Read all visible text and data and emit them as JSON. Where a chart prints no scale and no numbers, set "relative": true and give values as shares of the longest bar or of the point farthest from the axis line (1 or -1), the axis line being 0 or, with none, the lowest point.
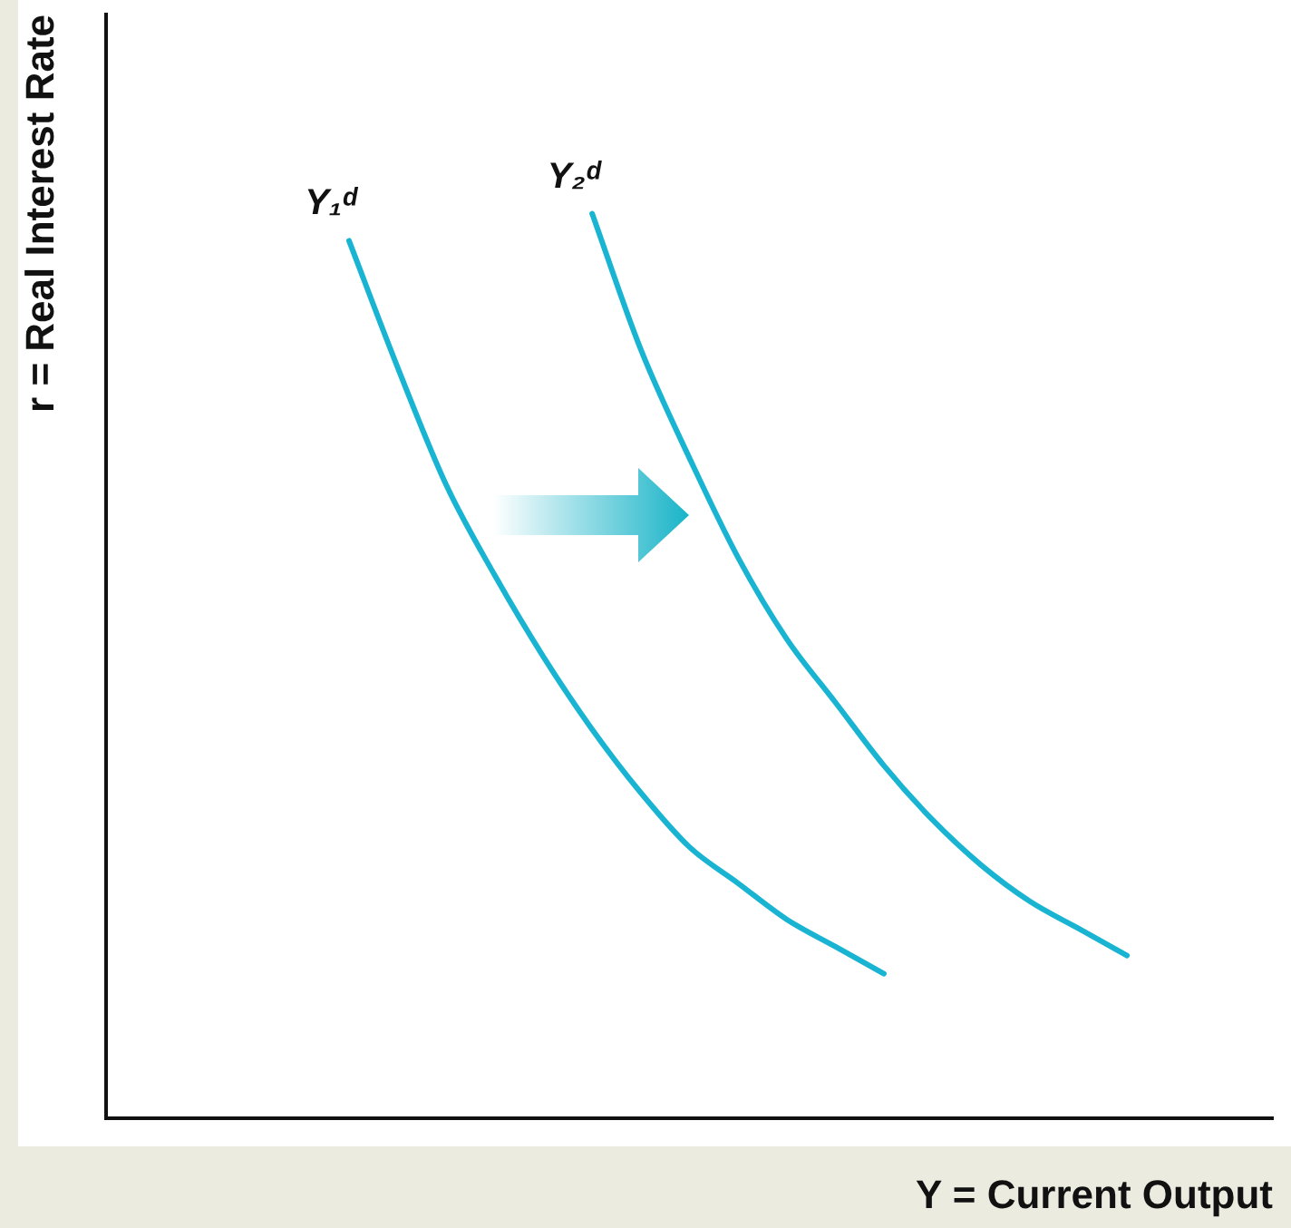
{
  "chart_data": {
    "type": "line",
    "relative": true,
    "xlabel": "Y = Current Output",
    "ylabel": "r = Real Interest Rate",
    "legend": false,
    "grid": false,
    "marker": "none",
    "line_style": "solid",
    "categories": [
      null,
      null,
      null,
      null,
      null,
      null,
      null,
      null,
      null,
      null,
      null,
      null,
      null,
      null,
      null,
      null,
      null,
      null,
      null,
      null,
      null,
      null,
      null,
      null,
      null
    ],
    "series": [
      {
        "name": "Y₁ᵈ",
        "color": "#19b4d2",
        "values": [
          null,
          null,
          null,
          null,
          null,
          0.97,
          0.83,
          0.7,
          0.6,
          0.51,
          0.43,
          0.36,
          0.3,
          0.26,
          0.22,
          0.19,
          0.16,
          null,
          null,
          null,
          null,
          null,
          null,
          null,
          null
        ]
      },
      {
        "name": "Y₂ᵈ",
        "color": "#19b4d2",
        "values": [
          null,
          null,
          null,
          null,
          null,
          null,
          null,
          null,
          null,
          null,
          1.0,
          0.85,
          0.73,
          0.62,
          0.53,
          0.46,
          0.39,
          0.33,
          0.28,
          0.24,
          0.21,
          0.18,
          null,
          null,
          null
        ]
      }
    ]
  }
}
